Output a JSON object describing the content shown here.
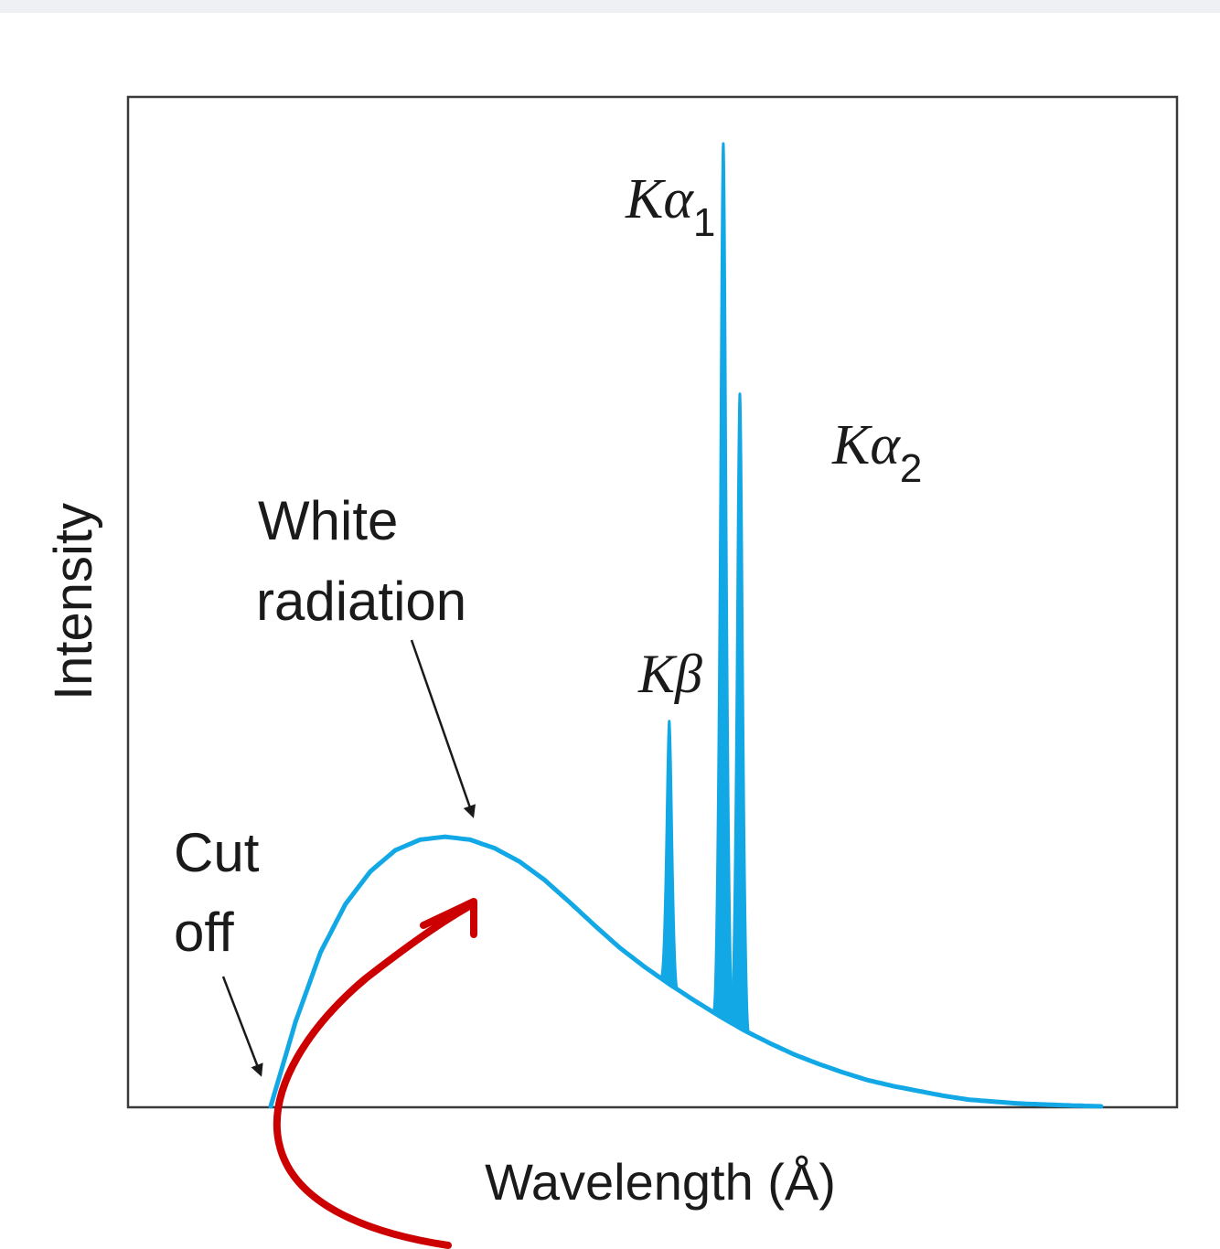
{
  "chart_data": {
    "type": "line",
    "xlabel": "Wavelength (Å)",
    "ylabel": "Intensity",
    "grid": false,
    "series_color": "#12a8e6",
    "continuum": {
      "label_line1": "White",
      "label_line2": "radiation",
      "x": [
        0.0,
        0.03,
        0.06,
        0.09,
        0.12,
        0.15,
        0.18,
        0.21,
        0.24,
        0.27,
        0.3,
        0.33,
        0.36,
        0.39,
        0.42,
        0.45,
        0.48,
        0.51,
        0.54,
        0.57,
        0.6,
        0.63,
        0.66,
        0.69,
        0.72,
        0.75,
        0.78,
        0.81,
        0.84,
        0.87,
        0.9,
        0.93,
        0.96,
        0.98,
        1.0
      ],
      "y": [
        0.0,
        0.088,
        0.16,
        0.21,
        0.244,
        0.266,
        0.277,
        0.28,
        0.277,
        0.268,
        0.254,
        0.235,
        0.212,
        0.188,
        0.165,
        0.145,
        0.127,
        0.11,
        0.094,
        0.079,
        0.066,
        0.054,
        0.044,
        0.035,
        0.027,
        0.021,
        0.016,
        0.011,
        0.007,
        0.005,
        0.003,
        0.002,
        0.001,
        0.0005,
        0.0
      ]
    },
    "cutoff": {
      "label_line1": "Cut",
      "label_line2": "off",
      "x": 0.0
    },
    "peaks": [
      {
        "label": "Kβ",
        "x": 0.48,
        "y": 0.4
      },
      {
        "label": "Kα",
        "subscript": "1",
        "x": 0.545,
        "y": 1.0
      },
      {
        "label": "Kα",
        "subscript": "2",
        "x": 0.565,
        "y": 0.74
      }
    ],
    "annotation_color": "#cc0000"
  }
}
